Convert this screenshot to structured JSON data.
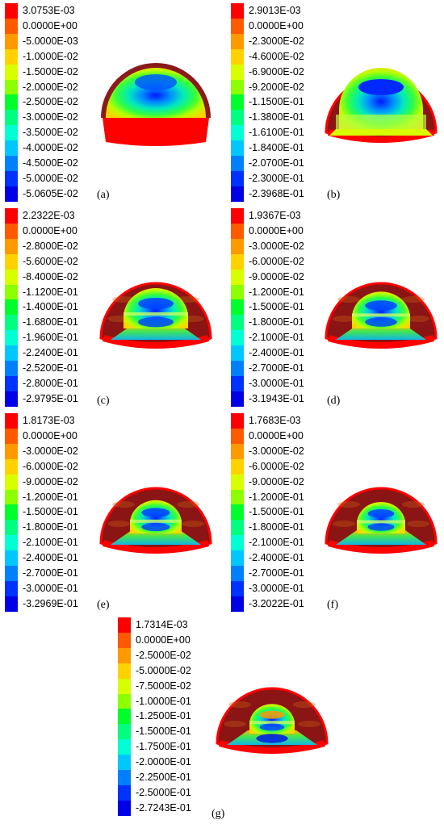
{
  "legend_colors": [
    "#ff0000",
    "#ff5a00",
    "#ff9900",
    "#ffd200",
    "#d8ff00",
    "#8cff00",
    "#00ff2a",
    "#00ff80",
    "#00ffd2",
    "#00c8ff",
    "#0080ff",
    "#0032ff",
    "#0000e6"
  ],
  "panels": [
    {
      "letter": "(a)",
      "labels": [
        "3.0753E-03",
        "0.0000E+00",
        "-5.0000E-03",
        "-1.0000E-02",
        "-1.5000E-02",
        "-2.0000E-02",
        "-2.5000E-02",
        "-3.0000E-02",
        "-3.5000E-02",
        "-4.0000E-02",
        "-4.5000E-02",
        "-5.0000E-02",
        "-5.0605E-02"
      ]
    },
    {
      "letter": "(b)",
      "labels": [
        "2.9013E-03",
        "0.0000E+00",
        "-2.3000E-02",
        "-4.6000E-02",
        "-6.9000E-02",
        "-9.2000E-02",
        "-1.1500E-01",
        "-1.3800E-01",
        "-1.6100E-01",
        "-1.8400E-01",
        "-2.0700E-01",
        "-2.3000E-01",
        "-2.3968E-01"
      ]
    },
    {
      "letter": "(c)",
      "labels": [
        "2.2322E-03",
        "0.0000E+00",
        "-2.8000E-02",
        "-5.6000E-02",
        "-8.4000E-02",
        "-1.1200E-01",
        "-1.4000E-01",
        "-1.6800E-01",
        "-1.9600E-01",
        "-2.2400E-01",
        "-2.5200E-01",
        "-2.8000E-01",
        "-2.9795E-01"
      ]
    },
    {
      "letter": "(d)",
      "labels": [
        "1.9367E-03",
        "0.0000E+00",
        "-3.0000E-02",
        "-6.0000E-02",
        "-9.0000E-02",
        "-1.2000E-01",
        "-1.5000E-01",
        "-1.8000E-01",
        "-2.1000E-01",
        "-2.4000E-01",
        "-2.7000E-01",
        "-3.0000E-01",
        "-3.1943E-01"
      ]
    },
    {
      "letter": "(e)",
      "labels": [
        "1.8173E-03",
        "0.0000E+00",
        "-3.0000E-02",
        "-6.0000E-02",
        "-9.0000E-02",
        "-1.2000E-01",
        "-1.5000E-01",
        "-1.8000E-01",
        "-2.1000E-01",
        "-2.4000E-01",
        "-2.7000E-01",
        "-3.0000E-01",
        "-3.2969E-01"
      ]
    },
    {
      "letter": "(f)",
      "labels": [
        "1.7683E-03",
        "0.0000E+00",
        "-3.0000E-02",
        "-6.0000E-02",
        "-9.0000E-02",
        "-1.2000E-01",
        "-1.5000E-01",
        "-1.8000E-01",
        "-2.1000E-01",
        "-2.4000E-01",
        "-2.7000E-01",
        "-3.0000E-01",
        "-3.2022E-01"
      ]
    },
    {
      "letter": "(g)",
      "labels": [
        "1.7314E-03",
        "0.0000E+00",
        "-2.5000E-02",
        "-5.0000E-02",
        "-7.5000E-02",
        "-1.0000E-01",
        "-1.2500E-01",
        "-1.5000E-01",
        "-1.7500E-01",
        "-2.0000E-01",
        "-2.2500E-01",
        "-2.5000E-01",
        "-2.7243E-01"
      ]
    }
  ]
}
